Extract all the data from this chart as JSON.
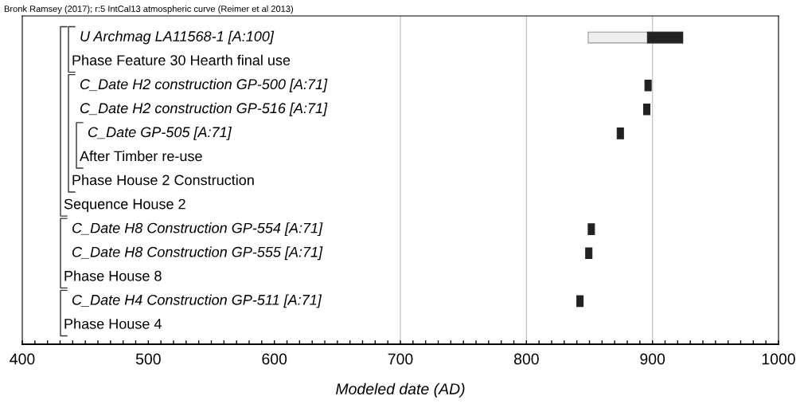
{
  "chart_data": {
    "type": "bar",
    "orientation": "horizontal",
    "title": "Bronk Ramsey (2017); r:5 IntCal13 atmospheric curve (Reimer et al 2013)",
    "xlabel": "Modeled date (AD)",
    "categories": [
      "U Archmag LA11568-1 [A:100]",
      "Phase Feature 30 Hearth final use",
      "C_Date H2 construction GP-500 [A:71]",
      "C_Date H2 construction GP-516 [A:71]",
      "C_Date GP-505 [A:71]",
      "After Timber re-use",
      "Phase House 2 Construction",
      "Sequence House 2",
      "C_Date H8 Construction GP-554 [A:71]",
      "C_Date H8 Construction GP-555 [A:71]",
      "Phase House 8",
      "C_Date H4 Construction GP-511 [A:71]",
      "Phase House 4"
    ],
    "series": [
      {
        "color": "#eeeeee",
        "base": [
          849,
          null,
          null,
          null,
          null,
          null,
          null,
          null,
          null,
          null,
          null,
          null,
          null
        ],
        "values": [
          75,
          null,
          null,
          null,
          null,
          null,
          null,
          null,
          null,
          null,
          null,
          null,
          null
        ]
      },
      {
        "color": "#222222",
        "base": [
          896,
          null,
          894,
          893,
          872,
          null,
          null,
          null,
          849,
          847,
          null,
          840,
          null
        ],
        "values": [
          28,
          null,
          5,
          5,
          5,
          null,
          null,
          null,
          5,
          5,
          null,
          5,
          null
        ]
      }
    ],
    "xlim": [
      400,
      1000
    ],
    "xticks": [
      400,
      {
        "value": 410,
        "label": null
      },
      {
        "value": 420,
        "label": null
      },
      {
        "value": 430,
        "label": null
      },
      {
        "value": 440,
        "label": null
      },
      {
        "value": 450,
        "label": null
      },
      {
        "value": 460,
        "label": null
      },
      {
        "value": 470,
        "label": null
      },
      {
        "value": 480,
        "label": null
      },
      {
        "value": 490,
        "label": null
      },
      500,
      {
        "value": 510,
        "label": null
      },
      {
        "value": 520,
        "label": null
      },
      {
        "value": 530,
        "label": null
      },
      {
        "value": 540,
        "label": null
      },
      {
        "value": 550,
        "label": null
      },
      {
        "value": 560,
        "label": null
      },
      {
        "value": 570,
        "label": null
      },
      {
        "value": 580,
        "label": null
      },
      {
        "value": 590,
        "label": null
      },
      600,
      {
        "value": 610,
        "label": null
      },
      {
        "value": 620,
        "label": null
      },
      {
        "value": 630,
        "label": null
      },
      {
        "value": 640,
        "label": null
      },
      {
        "value": 650,
        "label": null
      },
      {
        "value": 660,
        "label": null
      },
      {
        "value": 670,
        "label": null
      },
      {
        "value": 680,
        "label": null
      },
      {
        "value": 690,
        "label": null
      },
      700,
      {
        "value": 710,
        "label": null
      },
      {
        "value": 720,
        "label": null
      },
      {
        "value": 730,
        "label": null
      },
      {
        "value": 740,
        "label": null
      },
      {
        "value": 750,
        "label": null
      },
      {
        "value": 760,
        "label": null
      },
      {
        "value": 770,
        "label": null
      },
      {
        "value": 780,
        "label": null
      },
      {
        "value": 790,
        "label": null
      },
      800,
      {
        "value": 810,
        "label": null
      },
      {
        "value": 820,
        "label": null
      },
      {
        "value": 830,
        "label": null
      },
      {
        "value": 840,
        "label": null
      },
      {
        "value": 850,
        "label": null
      },
      {
        "value": 860,
        "label": null
      },
      {
        "value": 870,
        "label": null
      },
      {
        "value": 880,
        "label": null
      },
      {
        "value": 890,
        "label": null
      },
      900,
      {
        "value": 910,
        "label": null
      },
      {
        "value": 920,
        "label": null
      },
      {
        "value": 930,
        "label": null
      },
      {
        "value": 940,
        "label": null
      },
      {
        "value": 950,
        "label": null
      },
      {
        "value": 960,
        "label": null
      },
      {
        "value": 970,
        "label": null
      },
      {
        "value": 980,
        "label": null
      },
      {
        "value": 990,
        "label": null
      },
      1000
    ],
    "ref_lines": [
      {
        "axis": "x",
        "value": 700,
        "color": "#c8c8c8"
      },
      {
        "axis": "x",
        "value": 800,
        "color": "#c8c8c8"
      },
      {
        "axis": "x",
        "value": 900,
        "color": "#c8c8c8"
      }
    ],
    "grid": false,
    "legend": false
  }
}
